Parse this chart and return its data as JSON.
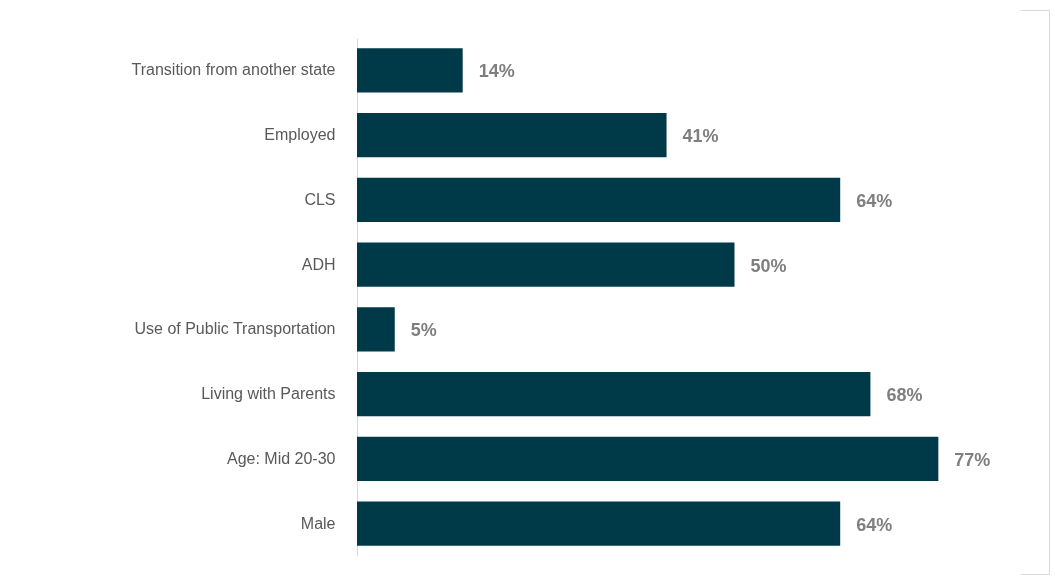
{
  "chart_data": {
    "type": "bar",
    "orientation": "horizontal",
    "categories": [
      "Transition from another state",
      "Employed",
      "CLS",
      "ADH",
      "Use of Public Transportation",
      "Living with Parents",
      "Age: Mid 20-30",
      "Male"
    ],
    "values": [
      14,
      41,
      64,
      50,
      5,
      68,
      77,
      64
    ],
    "value_labels": [
      "14%",
      "41%",
      "64%",
      "50%",
      "5%",
      "68%",
      "77%",
      "64%"
    ],
    "color": "#003a48"
  }
}
